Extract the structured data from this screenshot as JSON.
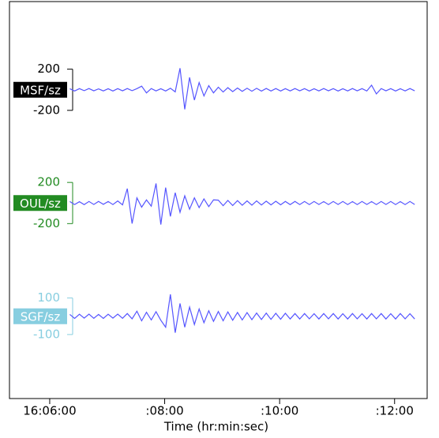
{
  "chart_data": {
    "type": "line",
    "xlabel": "Time (hr:min:sec)",
    "xlim": [
      318,
      754
    ],
    "xticks": [
      {
        "value": 360,
        "label": "16:06:00"
      },
      {
        "value": 480,
        "label": ":08:00"
      },
      {
        "value": 600,
        "label": ":10:00"
      },
      {
        "value": 720,
        "label": ":12:00"
      }
    ],
    "x": [
      381,
      386,
      391,
      396,
      401,
      406,
      411,
      416,
      421,
      426,
      431,
      436,
      441,
      446,
      451,
      456,
      461,
      466,
      471,
      476,
      481,
      486,
      491,
      496,
      501,
      506,
      511,
      516,
      521,
      526,
      531,
      536,
      541,
      546,
      551,
      556,
      561,
      566,
      571,
      576,
      581,
      586,
      591,
      596,
      601,
      606,
      611,
      616,
      621,
      626,
      631,
      636,
      641,
      646,
      651,
      656,
      661,
      666,
      671,
      676,
      681,
      686,
      691,
      696,
      701,
      706,
      711,
      716,
      721,
      726,
      731,
      736,
      741
    ],
    "series": [
      {
        "name": "MSF/sz",
        "color": "#5555ff",
        "label_color": "#000000",
        "ylim": [
          -550,
          550
        ],
        "yticks": [
          200,
          -200
        ],
        "values": [
          10,
          -12,
          11,
          -9,
          12,
          -10,
          9,
          -11,
          10,
          -12,
          11,
          -10,
          12,
          -9,
          11,
          35,
          -30,
          12,
          -11,
          10,
          -12,
          15,
          -20,
          210,
          -190,
          120,
          -100,
          70,
          -60,
          40,
          -30,
          25,
          -22,
          20,
          -18,
          17,
          -16,
          15,
          -14,
          14,
          -13,
          13,
          -12,
          12,
          -12,
          11,
          -11,
          12,
          -10,
          11,
          -12,
          10,
          -11,
          12,
          -10,
          11,
          -12,
          10,
          -11,
          12,
          -10,
          11,
          -12,
          45,
          -40,
          12,
          -10,
          11,
          -12,
          10,
          -11,
          12,
          -10
        ]
      },
      {
        "name": "OUL/sz",
        "color": "#5555ff",
        "label_color": "#228b22",
        "ylim": [
          -550,
          550
        ],
        "yticks": [
          200,
          -200
        ],
        "values": [
          14,
          -15,
          13,
          -16,
          15,
          -14,
          16,
          -13,
          15,
          -15,
          20,
          -18,
          140,
          -200,
          50,
          -40,
          30,
          -30,
          190,
          -210,
          150,
          -130,
          100,
          -90,
          70,
          -60,
          50,
          -45,
          40,
          -35,
          30,
          28,
          -26,
          25,
          -24,
          23,
          -22,
          21,
          -20,
          20,
          -19,
          18,
          -18,
          17,
          -17,
          16,
          -16,
          16,
          -15,
          15,
          -15,
          15,
          -14,
          14,
          -15,
          15,
          -14,
          15,
          -15,
          14,
          -15,
          15,
          -14,
          14,
          -15,
          15,
          -14,
          15,
          -15,
          14,
          -15,
          15,
          -14
        ]
      },
      {
        "name": "SGF/sz",
        "color": "#5555ff",
        "label_color": "#87cee0",
        "ylim": [
          -310,
          310
        ],
        "yticks": [
          100,
          -100
        ],
        "values": [
          10,
          -12,
          11,
          -10,
          12,
          -11,
          10,
          -12,
          11,
          -10,
          12,
          -11,
          15,
          -14,
          28,
          -25,
          22,
          -20,
          25,
          -22,
          -60,
          120,
          -90,
          70,
          -60,
          50,
          -45,
          40,
          -35,
          30,
          -28,
          26,
          -25,
          24,
          -22,
          21,
          -20,
          20,
          -19,
          18,
          -18,
          17,
          -17,
          16,
          -16,
          16,
          -15,
          15,
          -15,
          15,
          -14,
          14,
          -15,
          15,
          -14,
          15,
          -15,
          14,
          -15,
          15,
          -14,
          14,
          -15,
          15,
          -14,
          15,
          -15,
          14,
          -15,
          15,
          -14,
          14,
          -15
        ]
      }
    ]
  }
}
